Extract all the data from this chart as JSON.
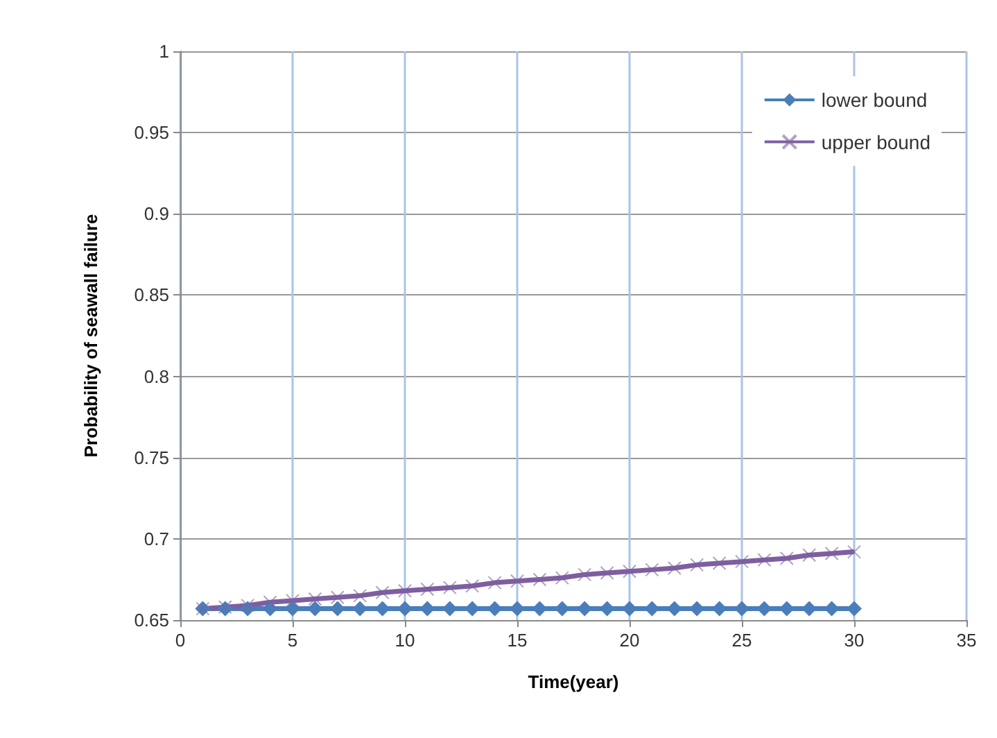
{
  "chart_data": {
    "type": "line",
    "xlabel": "Time(year)",
    "ylabel": "Probability of seawall failure",
    "x": [
      1,
      2,
      3,
      4,
      5,
      6,
      7,
      8,
      9,
      10,
      11,
      12,
      13,
      14,
      15,
      16,
      17,
      18,
      19,
      20,
      21,
      22,
      23,
      24,
      25,
      26,
      27,
      28,
      29,
      30
    ],
    "series": [
      {
        "name": "lower bound",
        "color": "#4a7ebb",
        "marker": "diamond",
        "values": [
          0.657,
          0.657,
          0.657,
          0.657,
          0.657,
          0.657,
          0.657,
          0.657,
          0.657,
          0.657,
          0.657,
          0.657,
          0.657,
          0.657,
          0.657,
          0.657,
          0.657,
          0.657,
          0.657,
          0.657,
          0.657,
          0.657,
          0.657,
          0.657,
          0.657,
          0.657,
          0.657,
          0.657,
          0.657,
          0.657
        ]
      },
      {
        "name": "upper bound",
        "color": "#7d5fa0",
        "marker": "cross",
        "values": [
          0.657,
          0.658,
          0.659,
          0.661,
          0.662,
          0.663,
          0.664,
          0.665,
          0.667,
          0.668,
          0.669,
          0.67,
          0.671,
          0.673,
          0.674,
          0.675,
          0.676,
          0.678,
          0.679,
          0.68,
          0.681,
          0.682,
          0.684,
          0.685,
          0.686,
          0.687,
          0.688,
          0.69,
          0.691,
          0.692
        ]
      }
    ],
    "xlim": [
      0,
      35
    ],
    "xticks": [
      0,
      5,
      10,
      15,
      20,
      25,
      30,
      35
    ],
    "ylim": [
      0.65,
      1
    ],
    "yticks": [
      0.65,
      0.7,
      0.75,
      0.8,
      0.85,
      0.9,
      0.95,
      1
    ],
    "grid": true,
    "legend": "top right"
  }
}
